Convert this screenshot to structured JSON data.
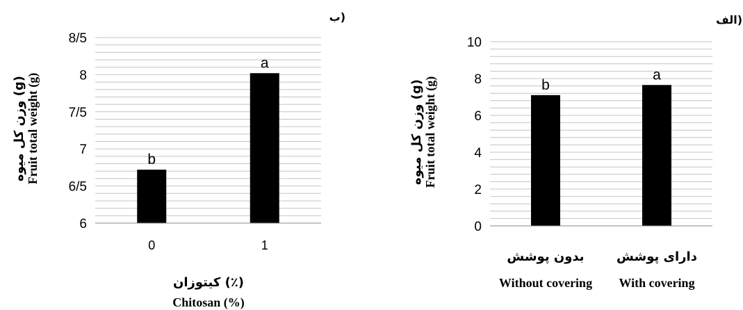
{
  "chart_data": [
    {
      "type": "bar",
      "panel_label": "ب)",
      "categories": [
        "0",
        "1"
      ],
      "values": [
        6.72,
        8.02
      ],
      "significance": [
        "b",
        "a"
      ],
      "ylim": [
        6,
        8.5
      ],
      "yticks": [
        "6",
        "6/5",
        "7",
        "7/5",
        "8",
        "8/5"
      ],
      "ylabel_fa": "وزن کل میوه (g)",
      "ylabel_en": "Fruit total weight (g)",
      "xlabel_fa": "کیتوزان (٪)",
      "xlabel_en": "Chitosan (%)",
      "grid": true,
      "bar_color": "#000000"
    },
    {
      "type": "bar",
      "panel_label": "الف)",
      "categories_fa": [
        "بدون پوشش",
        "دارای پوشش"
      ],
      "categories_en": [
        "Without covering",
        "With covering"
      ],
      "values": [
        7.1,
        7.65
      ],
      "significance": [
        "b",
        "a"
      ],
      "ylim": [
        0,
        10
      ],
      "yticks": [
        "0",
        "2",
        "4",
        "6",
        "8",
        "10"
      ],
      "ylabel_fa": "وزن کل میوه (g)",
      "ylabel_en": "Fruit total weight (g)",
      "grid": true,
      "bar_color": "#000000"
    }
  ]
}
